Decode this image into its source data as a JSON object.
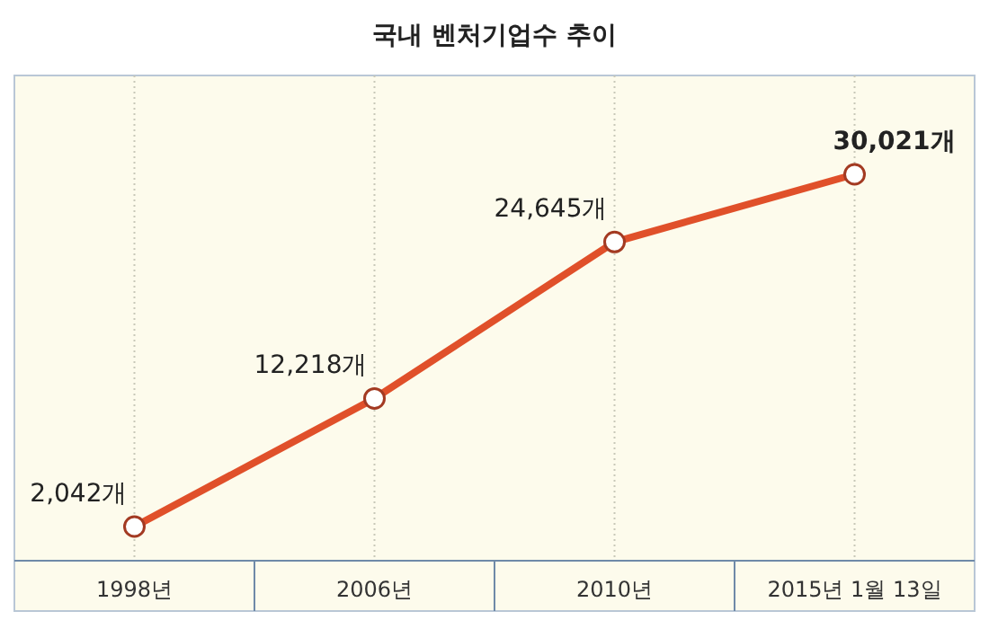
{
  "chart_data": {
    "type": "line",
    "title": "국내 벤처기업수 추이",
    "categories": [
      "1998년",
      "2006년",
      "2010년",
      "2015년 1월 13일"
    ],
    "series": [
      {
        "color": "#e0502a",
        "values": [
          2042,
          12218,
          24645,
          30021
        ],
        "value_labels": [
          "2,042개",
          "12,218개",
          "24,645개",
          "30,021개"
        ]
      }
    ],
    "marker": "circle",
    "grid": "x"
  }
}
